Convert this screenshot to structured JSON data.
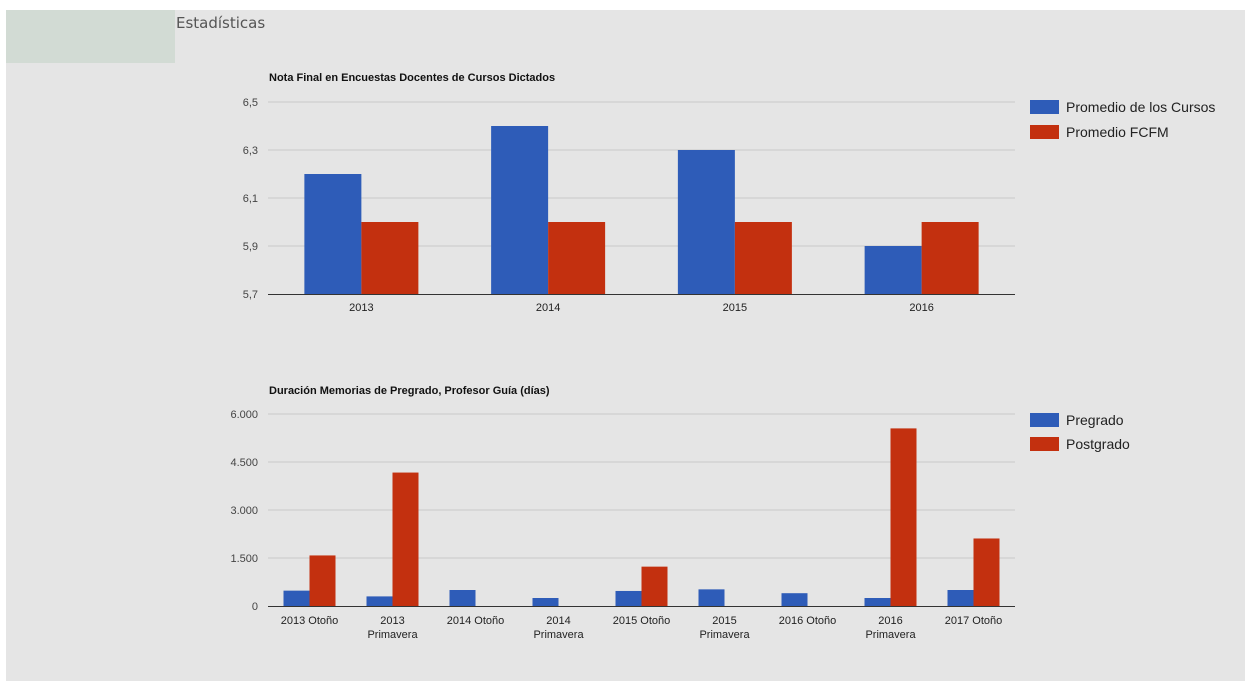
{
  "page": {
    "title": "Estadísticas"
  },
  "colors": {
    "blue": "#2e5cb8",
    "red": "#c3300f",
    "grid": "#c9c9c9",
    "background": "#e5e5e5"
  },
  "chart_data": [
    {
      "type": "bar",
      "title": "Nota Final en Encuestas Docentes de Cursos Dictados",
      "categories": [
        [
          "2013"
        ],
        [
          "2014"
        ],
        [
          "2015"
        ],
        [
          "2016"
        ]
      ],
      "series": [
        {
          "name": "Promedio de los Cursos",
          "color": "#2e5cb8",
          "values": [
            6.2,
            6.4,
            6.3,
            5.9
          ]
        },
        {
          "name": "Promedio FCFM",
          "color": "#c3300f",
          "values": [
            6.0,
            6.0,
            6.0,
            6.0
          ]
        }
      ],
      "ylim": [
        5.7,
        6.5
      ],
      "yticks": [
        "5,7",
        "5,9",
        "6,1",
        "6,3",
        "6,5"
      ],
      "grid": true,
      "legend": "right"
    },
    {
      "type": "bar",
      "title": "Duración Memorias de Pregrado, Profesor Guía (días)",
      "categories": [
        [
          "2013 Otoño"
        ],
        [
          "2013",
          "Primavera"
        ],
        [
          "2014 Otoño"
        ],
        [
          "2014",
          "Primavera"
        ],
        [
          "2015 Otoño"
        ],
        [
          "2015",
          "Primavera"
        ],
        [
          "2016 Otoño"
        ],
        [
          "2016",
          "Primavera"
        ],
        [
          "2017 Otoño"
        ]
      ],
      "series": [
        {
          "name": "Pregrado",
          "color": "#2e5cb8",
          "values": [
            480,
            300,
            500,
            250,
            470,
            520,
            400,
            250,
            500
          ]
        },
        {
          "name": "Postgrado",
          "color": "#c3300f",
          "values": [
            1580,
            4170,
            0,
            0,
            1230,
            0,
            0,
            5550,
            2110
          ]
        }
      ],
      "ylim": [
        0,
        6000
      ],
      "yticks": [
        "0",
        "1.500",
        "3.000",
        "4.500",
        "6.000"
      ],
      "grid": true,
      "legend": "right"
    }
  ]
}
